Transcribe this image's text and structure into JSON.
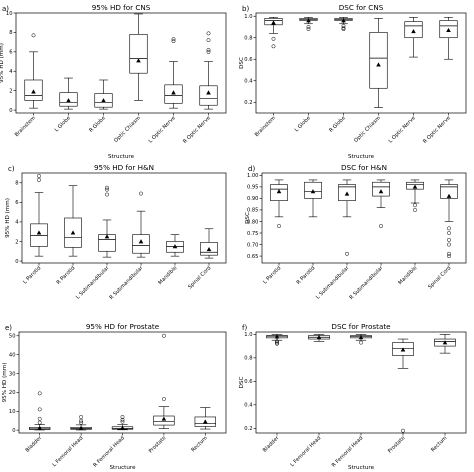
{
  "figure": {
    "colors": {
      "box": "#000000",
      "median": "#000000",
      "mean_marker": "#000000"
    }
  },
  "chart_data": [
    {
      "type": "box",
      "panel_label": "a)",
      "title": "95% HD for CNS",
      "xlabel": "Structure",
      "ylabel": "95% HD (mm)",
      "ylim": [
        -0.3,
        10.0
      ],
      "yticks": [
        0,
        2,
        4,
        6,
        8,
        10
      ],
      "yticklabels": [
        "0",
        "2",
        "4",
        "6",
        "8",
        "10"
      ],
      "categories": [
        "Brainstem",
        "L Globe",
        "R Globe",
        "Optic Chiasm",
        "L Optic Nerve",
        "R Optic Nerve"
      ],
      "boxes": [
        {
          "whislo": 0.2,
          "q1": 1.0,
          "med": 1.5,
          "q3": 3.1,
          "whishi": 6.0,
          "mean": 1.9,
          "fliers": [
            7.7
          ]
        },
        {
          "whislo": 0.1,
          "q1": 0.4,
          "med": 0.8,
          "q3": 1.8,
          "whishi": 3.3,
          "mean": 1.0,
          "fliers": []
        },
        {
          "whislo": 0.1,
          "q1": 0.3,
          "med": 0.8,
          "q3": 1.7,
          "whishi": 3.1,
          "mean": 1.0,
          "fliers": []
        },
        {
          "whislo": 1.0,
          "q1": 3.8,
          "med": 5.3,
          "q3": 7.8,
          "whishi": 9.9,
          "mean": 5.1,
          "fliers": []
        },
        {
          "whislo": 0.2,
          "q1": 0.7,
          "med": 1.5,
          "q3": 2.6,
          "whishi": 5.0,
          "mean": 1.8,
          "fliers": [
            7.1,
            7.3
          ]
        },
        {
          "whislo": 0.1,
          "q1": 0.5,
          "med": 1.2,
          "q3": 2.5,
          "whishi": 5.0,
          "mean": 1.8,
          "fliers": [
            6.0,
            6.2,
            7.2,
            7.9
          ]
        }
      ]
    },
    {
      "type": "box",
      "panel_label": "b)",
      "title": "DSC for CNS",
      "xlabel": "Structure",
      "ylabel": "DSC",
      "ylim": [
        0.1,
        1.03
      ],
      "yticks": [
        0.2,
        0.4,
        0.6,
        0.8,
        1.0
      ],
      "yticklabels": [
        "0.2",
        "0.4",
        "0.6",
        "0.8",
        "1.0"
      ],
      "categories": [
        "Brainstem",
        "L Globe",
        "R Globe",
        "Optic Chiasm",
        "L Optic Nerve",
        "R Optic Nerve"
      ],
      "boxes": [
        {
          "whislo": 0.84,
          "q1": 0.92,
          "med": 0.96,
          "q3": 0.98,
          "whishi": 0.99,
          "mean": 0.94,
          "fliers": [
            0.79,
            0.72
          ]
        },
        {
          "whislo": 0.93,
          "q1": 0.96,
          "med": 0.97,
          "q3": 0.98,
          "whishi": 0.99,
          "mean": 0.96,
          "fliers": [
            0.9,
            0.88
          ]
        },
        {
          "whislo": 0.93,
          "q1": 0.96,
          "med": 0.97,
          "q3": 0.98,
          "whishi": 0.99,
          "mean": 0.96,
          "fliers": [
            0.91,
            0.89,
            0.88
          ]
        },
        {
          "whislo": 0.15,
          "q1": 0.33,
          "med": 0.61,
          "q3": 0.85,
          "whishi": 0.98,
          "mean": 0.55,
          "fliers": []
        },
        {
          "whislo": 0.62,
          "q1": 0.8,
          "med": 0.91,
          "q3": 0.95,
          "whishi": 0.99,
          "mean": 0.86,
          "fliers": []
        },
        {
          "whislo": 0.6,
          "q1": 0.8,
          "med": 0.91,
          "q3": 0.96,
          "whishi": 0.99,
          "mean": 0.87,
          "fliers": []
        }
      ]
    },
    {
      "type": "box",
      "panel_label": "c)",
      "title": "95% HD for H&N",
      "xlabel": "",
      "ylabel": "95% HD (mm)",
      "ylim": [
        -0.2,
        9.0
      ],
      "yticks": [
        0,
        2,
        4,
        6,
        8
      ],
      "yticklabels": [
        "0",
        "2",
        "4",
        "6",
        "8"
      ],
      "categories": [
        "L Parotid",
        "R Parotid",
        "L Submandibular",
        "R Submandibular",
        "Mandible",
        "Spinal Cord"
      ],
      "boxes": [
        {
          "whislo": 0.5,
          "q1": 1.5,
          "med": 2.6,
          "q3": 3.8,
          "whishi": 7.0,
          "mean": 2.9,
          "fliers": [
            8.3,
            8.7
          ]
        },
        {
          "whislo": 0.5,
          "q1": 1.4,
          "med": 2.4,
          "q3": 4.4,
          "whishi": 7.7,
          "mean": 2.9,
          "fliers": []
        },
        {
          "whislo": 0.4,
          "q1": 1.0,
          "med": 2.2,
          "q3": 2.7,
          "whishi": 4.2,
          "mean": 2.5,
          "fliers": [
            7.3,
            7.5,
            6.8
          ]
        },
        {
          "whislo": 0.4,
          "q1": 0.8,
          "med": 1.6,
          "q3": 2.7,
          "whishi": 5.1,
          "mean": 2.0,
          "fliers": [
            6.9
          ]
        },
        {
          "whislo": 0.5,
          "q1": 0.9,
          "med": 1.5,
          "q3": 2.0,
          "whishi": 2.7,
          "mean": 1.5,
          "fliers": []
        },
        {
          "whislo": 0.3,
          "q1": 0.6,
          "med": 0.9,
          "q3": 1.9,
          "whishi": 3.3,
          "mean": 1.2,
          "fliers": []
        }
      ]
    },
    {
      "type": "box",
      "panel_label": "d)",
      "title": "DSC for H&N",
      "xlabel": "",
      "ylabel": "DSC",
      "ylim": [
        0.62,
        1.01
      ],
      "yticks": [
        0.65,
        0.7,
        0.75,
        0.8,
        0.85,
        0.9,
        0.95,
        1.0
      ],
      "yticklabels": [
        "0.65",
        "0.70",
        "0.75",
        "0.80",
        "0.85",
        "0.90",
        "0.95",
        "1.00"
      ],
      "categories": [
        "L Parotid",
        "R Parotid",
        "L Submandibular",
        "R Submandibular",
        "Mandible",
        "Spinal Cord"
      ],
      "boxes": [
        {
          "whislo": 0.82,
          "q1": 0.89,
          "med": 0.94,
          "q3": 0.96,
          "whishi": 0.98,
          "mean": 0.93,
          "fliers": [
            0.78
          ]
        },
        {
          "whislo": 0.82,
          "q1": 0.9,
          "med": 0.93,
          "q3": 0.97,
          "whishi": 0.98,
          "mean": 0.93,
          "fliers": []
        },
        {
          "whislo": 0.82,
          "q1": 0.89,
          "med": 0.95,
          "q3": 0.96,
          "whishi": 0.98,
          "mean": 0.92,
          "fliers": [
            0.66
          ]
        },
        {
          "whislo": 0.86,
          "q1": 0.91,
          "med": 0.95,
          "q3": 0.97,
          "whishi": 0.98,
          "mean": 0.93,
          "fliers": [
            0.78
          ]
        },
        {
          "whislo": 0.88,
          "q1": 0.94,
          "med": 0.96,
          "q3": 0.97,
          "whishi": 0.98,
          "mean": 0.95,
          "fliers": [
            0.85,
            0.87
          ]
        },
        {
          "whislo": 0.8,
          "q1": 0.9,
          "med": 0.95,
          "q3": 0.96,
          "whishi": 0.98,
          "mean": 0.91,
          "fliers": [
            0.77,
            0.75,
            0.72,
            0.7,
            0.66,
            0.65
          ]
        }
      ]
    },
    {
      "type": "box",
      "panel_label": "e)",
      "title": "95% HD for Prostate",
      "xlabel": "Structure",
      "ylabel": "95% HD (mm)",
      "ylim": [
        -1.5,
        52
      ],
      "yticks": [
        0,
        10,
        20,
        30,
        40,
        50
      ],
      "yticklabels": [
        "0",
        "10",
        "20",
        "30",
        "40",
        "50"
      ],
      "categories": [
        "Bladder",
        "L Femoral Head",
        "R Femoral Head",
        "Prostate",
        "Rectum"
      ],
      "boxes": [
        {
          "whislo": 0.1,
          "q1": 0.3,
          "med": 0.7,
          "q3": 1.5,
          "whishi": 2.9,
          "mean": 1.2,
          "fliers": [
            4.0,
            6.0,
            11.0,
            19.5
          ]
        },
        {
          "whislo": 0.1,
          "q1": 0.4,
          "med": 0.8,
          "q3": 1.5,
          "whishi": 2.8,
          "mean": 1.1,
          "fliers": [
            4.0,
            5.0,
            7.0
          ]
        },
        {
          "whislo": 0.2,
          "q1": 0.5,
          "med": 0.9,
          "q3": 1.8,
          "whishi": 3.0,
          "mean": 1.2,
          "fliers": [
            4.5,
            5.5,
            7.0
          ]
        },
        {
          "whislo": 0.8,
          "q1": 2.7,
          "med": 4.5,
          "q3": 7.5,
          "whishi": 12.5,
          "mean": 6.0,
          "fliers": [
            16.5,
            50.0
          ]
        },
        {
          "whislo": 0.6,
          "q1": 2.0,
          "med": 3.5,
          "q3": 7.0,
          "whishi": 12.0,
          "mean": 4.5,
          "fliers": []
        }
      ]
    },
    {
      "type": "box",
      "panel_label": "f)",
      "title": "DSC for Prostate",
      "xlabel": "Structure",
      "ylabel": "DSC",
      "ylim": [
        0.16,
        1.02
      ],
      "yticks": [
        0.2,
        0.4,
        0.6,
        0.8,
        1.0
      ],
      "yticklabels": [
        "0.2",
        "0.4",
        "0.6",
        "0.8",
        "1.0"
      ],
      "categories": [
        "Bladder",
        "L Femoral Head",
        "R Femoral Head",
        "Prostate",
        "Rectum"
      ],
      "boxes": [
        {
          "whislo": 0.95,
          "q1": 0.97,
          "med": 0.985,
          "q3": 0.99,
          "whishi": 1.0,
          "mean": 0.98,
          "fliers": [
            0.94,
            0.93,
            0.92
          ]
        },
        {
          "whislo": 0.94,
          "q1": 0.96,
          "med": 0.975,
          "q3": 0.99,
          "whishi": 1.0,
          "mean": 0.975,
          "fliers": []
        },
        {
          "whislo": 0.95,
          "q1": 0.97,
          "med": 0.98,
          "q3": 0.99,
          "whishi": 1.0,
          "mean": 0.975,
          "fliers": [
            0.93
          ]
        },
        {
          "whislo": 0.71,
          "q1": 0.82,
          "med": 0.88,
          "q3": 0.93,
          "whishi": 0.96,
          "mean": 0.87,
          "fliers": [
            0.18
          ]
        },
        {
          "whislo": 0.84,
          "q1": 0.9,
          "med": 0.94,
          "q3": 0.96,
          "whishi": 1.0,
          "mean": 0.93,
          "fliers": []
        }
      ]
    }
  ]
}
